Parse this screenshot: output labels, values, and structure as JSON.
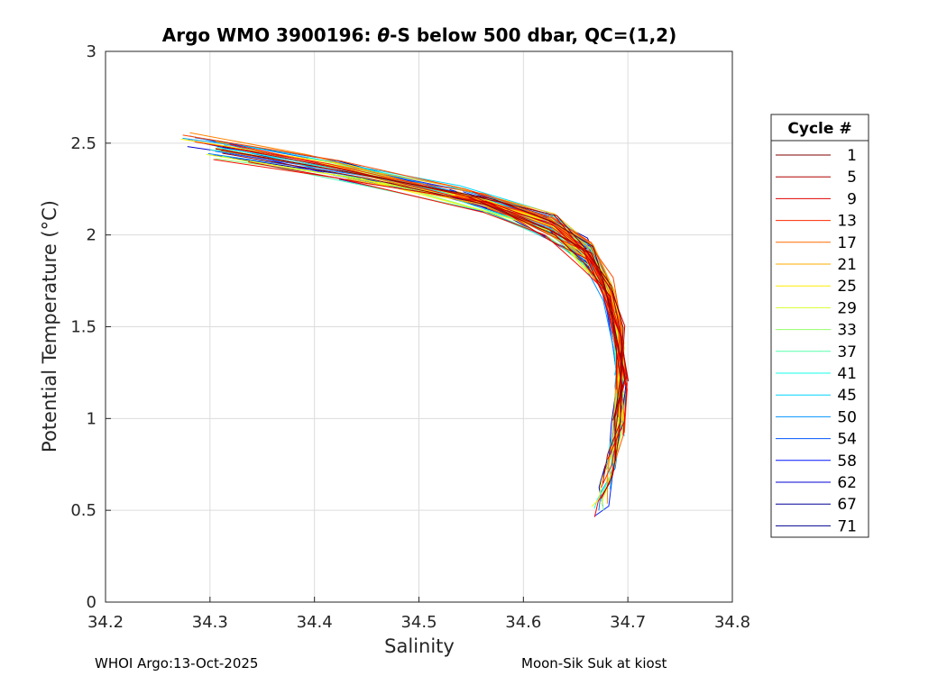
{
  "chart_data": {
    "type": "line",
    "title_prefix": "Argo WMO 3900196: ",
    "title_theta": "θ",
    "title_suffix": "-S below 500 dbar,  QC=(1,2)",
    "xlabel": "Salinity",
    "ylabel": "Potential Temperature (°C)",
    "xlim": [
      34.2,
      34.8
    ],
    "ylim": [
      0,
      3
    ],
    "xticks": [
      "34.2",
      "34.3",
      "34.4",
      "34.5",
      "34.6",
      "34.7",
      "34.8"
    ],
    "xtick_values": [
      34.2,
      34.3,
      34.4,
      34.5,
      34.6,
      34.7,
      34.8
    ],
    "yticks": [
      "0",
      "0.5",
      "1",
      "1.5",
      "2",
      "2.5",
      "3"
    ],
    "ytick_values": [
      0,
      0.5,
      1,
      1.5,
      2,
      2.5,
      3
    ],
    "grid": true,
    "colormap": "jet",
    "num_cycles": 72,
    "representative_profile": {
      "s": [
        34.42,
        34.5,
        34.58,
        34.64,
        34.675,
        34.695,
        34.705,
        34.708,
        34.705,
        34.698,
        34.692,
        34.688,
        34.685
      ],
      "t": [
        2.48,
        2.36,
        2.2,
        2.05,
        1.9,
        1.7,
        1.45,
        1.2,
        0.95,
        0.75,
        0.6,
        0.5,
        0.45
      ]
    },
    "legend": {
      "title": "Cycle #",
      "entries": [
        "1",
        "5",
        "9",
        "13",
        "17",
        "21",
        "25",
        "29",
        "33",
        "37",
        "41",
        "45",
        "50",
        "54",
        "58",
        "62",
        "67",
        "71"
      ],
      "colors": [
        "#800000",
        "#b00000",
        "#e00000",
        "#ff2a00",
        "#ff6a00",
        "#ffab00",
        "#ffeb00",
        "#d4ff2b",
        "#94ff6a",
        "#55ffaa",
        "#15ffe9",
        "#00d4ff",
        "#0095ff",
        "#0055ff",
        "#0015ff",
        "#0000d4",
        "#000095",
        "#00008f"
      ],
      "location": "outside-right"
    }
  },
  "footer": {
    "left": "WHOI Argo:13-Oct-2025",
    "right": "Moon-Sik Suk at kiost"
  }
}
